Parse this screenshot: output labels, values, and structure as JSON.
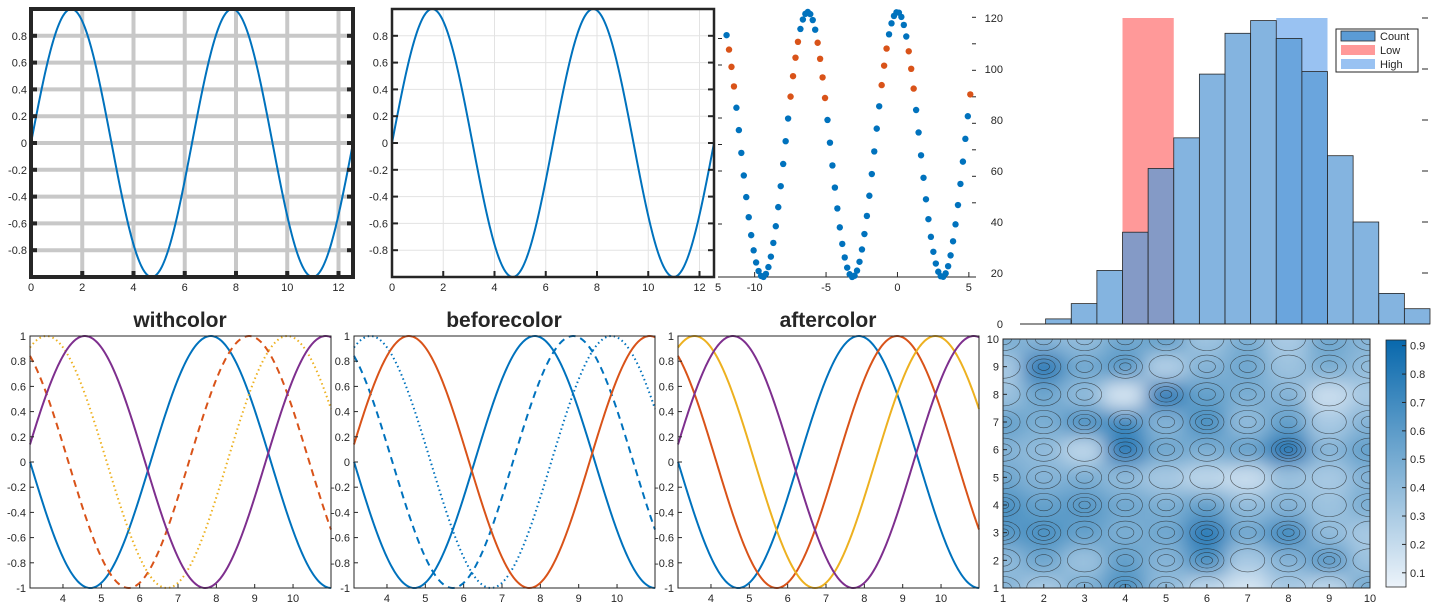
{
  "colors": {
    "blue": "#0072BD",
    "orange": "#D95319",
    "yellow": "#EDB120",
    "purple": "#7E2F8E",
    "hist_bar": "#5B9BD5",
    "low_band": "#FF9999",
    "high_band": "#99C2F2",
    "axis": "#262626"
  },
  "chart_data": [
    {
      "id": "sine_thick_grid",
      "type": "line",
      "x_range": [
        0,
        12.566
      ],
      "ylim": [
        -1,
        1
      ],
      "xticks": [
        "0",
        "2",
        "4",
        "6",
        "8",
        "10",
        "12"
      ],
      "yticks": [
        "0.8",
        "0.6",
        "0.4",
        "0.2",
        "0",
        "-0.2",
        "-0.4",
        "-0.6",
        "-0.8"
      ],
      "grid": "thick gray",
      "series": [
        {
          "function": "sin(x)",
          "color": "blue"
        }
      ]
    },
    {
      "id": "sine_thin_grid",
      "type": "line",
      "x_range": [
        0,
        12.566
      ],
      "ylim": [
        -1,
        1
      ],
      "xticks": [
        "0",
        "2",
        "4",
        "6",
        "8",
        "10",
        "12"
      ],
      "yticks": [
        "0.8",
        "0.6",
        "0.4",
        "0.2",
        "0",
        "-0.2",
        "-0.4",
        "-0.6",
        "-0.8"
      ],
      "grid": "thin",
      "series": [
        {
          "function": "sin(x)",
          "color": "blue"
        }
      ]
    },
    {
      "id": "scatter_sine",
      "type": "scatter",
      "x_range": [
        -12.566,
        5.5
      ],
      "ylim": [
        -1,
        1
      ],
      "xticks": [
        "-10",
        "-5",
        "0",
        "5"
      ],
      "extra_xtick_left": "5",
      "series": [
        {
          "function": "sin(x + pi/2)",
          "color": "blue",
          "points": 100
        },
        {
          "condition": "0.35 < y < 0.8",
          "color": "orange"
        }
      ]
    },
    {
      "id": "histogram",
      "type": "bar",
      "bins": [
        -3.5,
        -3,
        -2.5,
        -2,
        -1.5,
        -1,
        -0.5,
        0,
        0.5,
        1,
        1.5,
        2,
        2.5,
        3,
        3.5
      ],
      "values": [
        2,
        8,
        21,
        36,
        61,
        73,
        98,
        114,
        119,
        112,
        99,
        66,
        40,
        12,
        6
      ],
      "ylim": [
        0,
        120
      ],
      "yticks": [
        "0",
        "20",
        "40",
        "60",
        "80",
        "100",
        "120"
      ],
      "bands": [
        {
          "name": "Low",
          "x": [
            -2,
            -1
          ]
        },
        {
          "name": "High",
          "x": [
            1,
            2
          ]
        }
      ],
      "legend": [
        "Count",
        "Low",
        "High"
      ],
      "legend_position": "top-right"
    },
    {
      "id": "withcolor",
      "type": "line",
      "title": "withcolor",
      "x_range": [
        3.14,
        10.99
      ],
      "ylim": [
        -1,
        1
      ],
      "xticks": [
        "4",
        "5",
        "6",
        "7",
        "8",
        "9",
        "10"
      ],
      "yticks": [
        "1",
        "0.8",
        "0.6",
        "0.4",
        "0.2",
        "0",
        "-0.2",
        "-0.4",
        "-0.6",
        "-0.8",
        "-1"
      ],
      "series": [
        {
          "phase": 0,
          "color": "blue",
          "style": "solid"
        },
        {
          "phase": 1,
          "color": "orange",
          "style": "dashed"
        },
        {
          "phase": 2,
          "color": "yellow",
          "style": "dotted"
        },
        {
          "phase": 3,
          "color": "purple",
          "style": "solid"
        }
      ]
    },
    {
      "id": "beforecolor",
      "type": "line",
      "title": "beforecolor",
      "x_range": [
        3.14,
        10.99
      ],
      "ylim": [
        -1,
        1
      ],
      "xticks": [
        "4",
        "5",
        "6",
        "7",
        "8",
        "9",
        "10"
      ],
      "yticks": [
        "1",
        "0.8",
        "0.6",
        "0.4",
        "0.2",
        "0",
        "-0.2",
        "-0.4",
        "-0.6",
        "-0.8",
        "-1"
      ],
      "series": [
        {
          "phase": 0,
          "color": "blue",
          "style": "solid"
        },
        {
          "phase": 1,
          "color": "blue",
          "style": "dashed"
        },
        {
          "phase": 2,
          "color": "blue",
          "style": "dotted"
        },
        {
          "phase": 3,
          "color": "orange",
          "style": "solid"
        }
      ]
    },
    {
      "id": "aftercolor",
      "type": "line",
      "title": "aftercolor",
      "x_range": [
        3.14,
        10.99
      ],
      "ylim": [
        -1,
        1
      ],
      "xticks": [
        "4",
        "5",
        "6",
        "7",
        "8",
        "9",
        "10"
      ],
      "yticks": [
        "1",
        "0.8",
        "0.6",
        "0.4",
        "0.2",
        "0",
        "-0.2",
        "-0.4",
        "-0.6",
        "-0.8",
        "-1"
      ],
      "series": [
        {
          "phase": 0,
          "color": "blue",
          "style": "solid"
        },
        {
          "phase": 1,
          "color": "orange",
          "style": "solid"
        },
        {
          "phase": 2,
          "color": "yellow",
          "style": "solid"
        },
        {
          "phase": 3,
          "color": "purple",
          "style": "solid"
        }
      ]
    },
    {
      "id": "contour",
      "type": "heatmap",
      "x": [
        1,
        2,
        3,
        4,
        5,
        6,
        7,
        8,
        9,
        10
      ],
      "y": [
        1,
        2,
        3,
        4,
        5,
        6,
        7,
        8,
        9,
        10
      ],
      "z": [
        [
          0.45,
          0.3,
          0.5,
          0.7,
          0.4,
          0.2,
          0.1,
          0.3,
          0.2,
          0.55
        ],
        [
          0.4,
          0.55,
          0.35,
          0.6,
          0.45,
          0.7,
          0.3,
          0.45,
          0.65,
          0.35
        ],
        [
          0.65,
          0.7,
          0.6,
          0.5,
          0.55,
          0.85,
          0.55,
          0.75,
          0.4,
          0.3
        ],
        [
          0.7,
          0.6,
          0.65,
          0.55,
          0.5,
          0.6,
          0.4,
          0.45,
          0.35,
          0.5
        ],
        [
          0.55,
          0.45,
          0.5,
          0.4,
          0.3,
          0.2,
          0.15,
          0.35,
          0.3,
          0.45
        ],
        [
          0.45,
          0.4,
          0.2,
          0.85,
          0.55,
          0.5,
          0.6,
          0.9,
          0.45,
          0.6
        ],
        [
          0.6,
          0.5,
          0.7,
          0.75,
          0.45,
          0.7,
          0.4,
          0.6,
          0.3,
          0.45
        ],
        [
          0.35,
          0.55,
          0.4,
          0.1,
          0.85,
          0.6,
          0.5,
          0.45,
          0.15,
          0.3
        ],
        [
          0.3,
          0.85,
          0.55,
          0.65,
          0.25,
          0.45,
          0.55,
          0.35,
          0.5,
          0.4
        ],
        [
          0.5,
          0.45,
          0.4,
          0.55,
          0.6,
          0.35,
          0.5,
          0.3,
          0.55,
          0.45
        ]
      ],
      "levels": [
        0.1,
        0.2,
        0.3,
        0.4,
        0.5,
        0.6,
        0.7,
        0.8,
        0.9
      ],
      "colorbar_ticks": [
        "0.9",
        "0.8",
        "0.7",
        "0.6",
        "0.5",
        "0.4",
        "0.3",
        "0.2",
        "0.1"
      ],
      "colormap": "white-to-blue"
    }
  ]
}
